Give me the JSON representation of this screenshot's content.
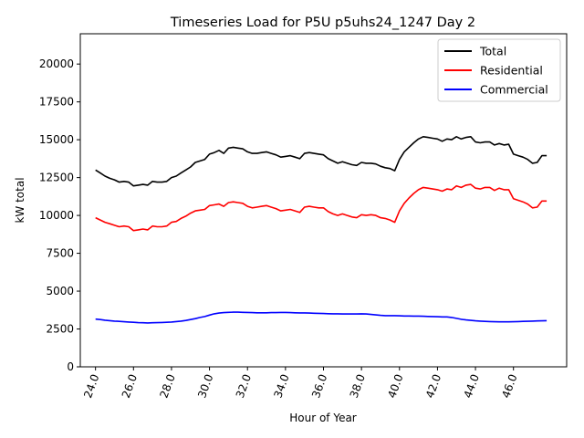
{
  "chart_data": {
    "type": "line",
    "title": "Timeseries Load for P5U p5uhs24_1247  Day 2",
    "xlabel": "Hour of Year",
    "ylabel": "kW total",
    "xlim": [
      23.2,
      48.8
    ],
    "ylim": [
      0,
      22000
    ],
    "xticks": [
      24,
      26,
      28,
      30,
      32,
      34,
      36,
      38,
      40,
      42,
      44,
      46
    ],
    "xtick_labels": [
      "24.0",
      "26.0",
      "28.0",
      "30.0",
      "32.0",
      "34.0",
      "36.0",
      "38.0",
      "40.0",
      "42.0",
      "44.0",
      "46.0"
    ],
    "yticks": [
      0,
      2500,
      5000,
      7500,
      10000,
      12500,
      15000,
      17500,
      20000
    ],
    "ytick_labels": [
      "0",
      "2500",
      "5000",
      "7500",
      "10000",
      "12500",
      "15000",
      "17500",
      "20000"
    ],
    "legend_position": "top-right",
    "x": [
      24.0,
      24.25,
      24.5,
      24.75,
      25.0,
      25.25,
      25.5,
      25.75,
      26.0,
      26.25,
      26.5,
      26.75,
      27.0,
      27.25,
      27.5,
      27.75,
      28.0,
      28.25,
      28.5,
      28.75,
      29.0,
      29.25,
      29.5,
      29.75,
      30.0,
      30.25,
      30.5,
      30.75,
      31.0,
      31.25,
      31.5,
      31.75,
      32.0,
      32.25,
      32.5,
      32.75,
      33.0,
      33.25,
      33.5,
      33.75,
      34.0,
      34.25,
      34.5,
      34.75,
      35.0,
      35.25,
      35.5,
      35.75,
      36.0,
      36.25,
      36.5,
      36.75,
      37.0,
      37.25,
      37.5,
      37.75,
      38.0,
      38.25,
      38.5,
      38.75,
      39.0,
      39.25,
      39.5,
      39.75,
      40.0,
      40.25,
      40.5,
      40.75,
      41.0,
      41.25,
      41.5,
      41.75,
      42.0,
      42.25,
      42.5,
      42.75,
      43.0,
      43.25,
      43.5,
      43.75,
      44.0,
      44.25,
      44.5,
      44.75,
      45.0,
      45.25,
      45.5,
      45.75,
      46.0,
      46.25,
      46.5,
      46.75,
      47.0,
      47.25,
      47.5,
      47.75
    ],
    "series": [
      {
        "name": "Total",
        "color": "#000000",
        "values": [
          13000,
          12800,
          12600,
          12450,
          12350,
          12200,
          12250,
          12200,
          11950,
          12000,
          12050,
          12000,
          12250,
          12200,
          12200,
          12250,
          12500,
          12600,
          12800,
          13000,
          13200,
          13500,
          13600,
          13700,
          14050,
          14150,
          14300,
          14100,
          14450,
          14500,
          14450,
          14400,
          14200,
          14100,
          14100,
          14150,
          14200,
          14100,
          14000,
          13850,
          13900,
          13950,
          13850,
          13750,
          14100,
          14150,
          14100,
          14050,
          14000,
          13750,
          13600,
          13450,
          13550,
          13450,
          13350,
          13300,
          13500,
          13450,
          13450,
          13400,
          13250,
          13150,
          13100,
          12950,
          13700,
          14200,
          14500,
          14800,
          15050,
          15200,
          15150,
          15100,
          15050,
          14900,
          15050,
          15000,
          15200,
          15050,
          15150,
          15200,
          14850,
          14800,
          14850,
          14850,
          14650,
          14750,
          14650,
          14700,
          14050,
          13950,
          13850,
          13700,
          13450,
          13500,
          13950,
          13950
        ]
      },
      {
        "name": "Residential",
        "color": "#ff0000",
        "values": [
          9850,
          9700,
          9550,
          9450,
          9350,
          9250,
          9300,
          9250,
          9000,
          9050,
          9100,
          9050,
          9300,
          9250,
          9250,
          9300,
          9550,
          9600,
          9800,
          9950,
          10150,
          10300,
          10350,
          10400,
          10650,
          10700,
          10750,
          10600,
          10850,
          10900,
          10850,
          10800,
          10600,
          10500,
          10550,
          10600,
          10650,
          10550,
          10450,
          10300,
          10350,
          10400,
          10300,
          10200,
          10550,
          10600,
          10550,
          10500,
          10500,
          10250,
          10100,
          10000,
          10100,
          10000,
          9900,
          9850,
          10050,
          10000,
          10050,
          10000,
          9850,
          9800,
          9700,
          9550,
          10300,
          10800,
          11150,
          11450,
          11700,
          11850,
          11800,
          11750,
          11700,
          11600,
          11750,
          11700,
          11950,
          11850,
          12000,
          12050,
          11800,
          11750,
          11850,
          11850,
          11650,
          11800,
          11700,
          11700,
          11100,
          11000,
          10900,
          10750,
          10500,
          10550,
          10950,
          10950
        ]
      },
      {
        "name": "Commercial",
        "color": "#0000ff",
        "values": [
          3150,
          3120,
          3080,
          3050,
          3020,
          3000,
          2980,
          2960,
          2940,
          2920,
          2910,
          2900,
          2910,
          2920,
          2930,
          2940,
          2960,
          2990,
          3020,
          3060,
          3120,
          3180,
          3260,
          3320,
          3420,
          3500,
          3550,
          3580,
          3600,
          3610,
          3610,
          3600,
          3590,
          3580,
          3570,
          3570,
          3570,
          3580,
          3580,
          3590,
          3590,
          3580,
          3570,
          3560,
          3560,
          3550,
          3540,
          3530,
          3520,
          3510,
          3500,
          3500,
          3490,
          3490,
          3490,
          3490,
          3500,
          3490,
          3460,
          3430,
          3400,
          3380,
          3380,
          3380,
          3370,
          3360,
          3360,
          3350,
          3350,
          3340,
          3330,
          3320,
          3310,
          3300,
          3300,
          3260,
          3200,
          3140,
          3100,
          3070,
          3040,
          3020,
          3000,
          2990,
          2980,
          2970,
          2970,
          2970,
          2980,
          2990,
          3000,
          3010,
          3020,
          3030,
          3040,
          3050
        ]
      }
    ]
  }
}
